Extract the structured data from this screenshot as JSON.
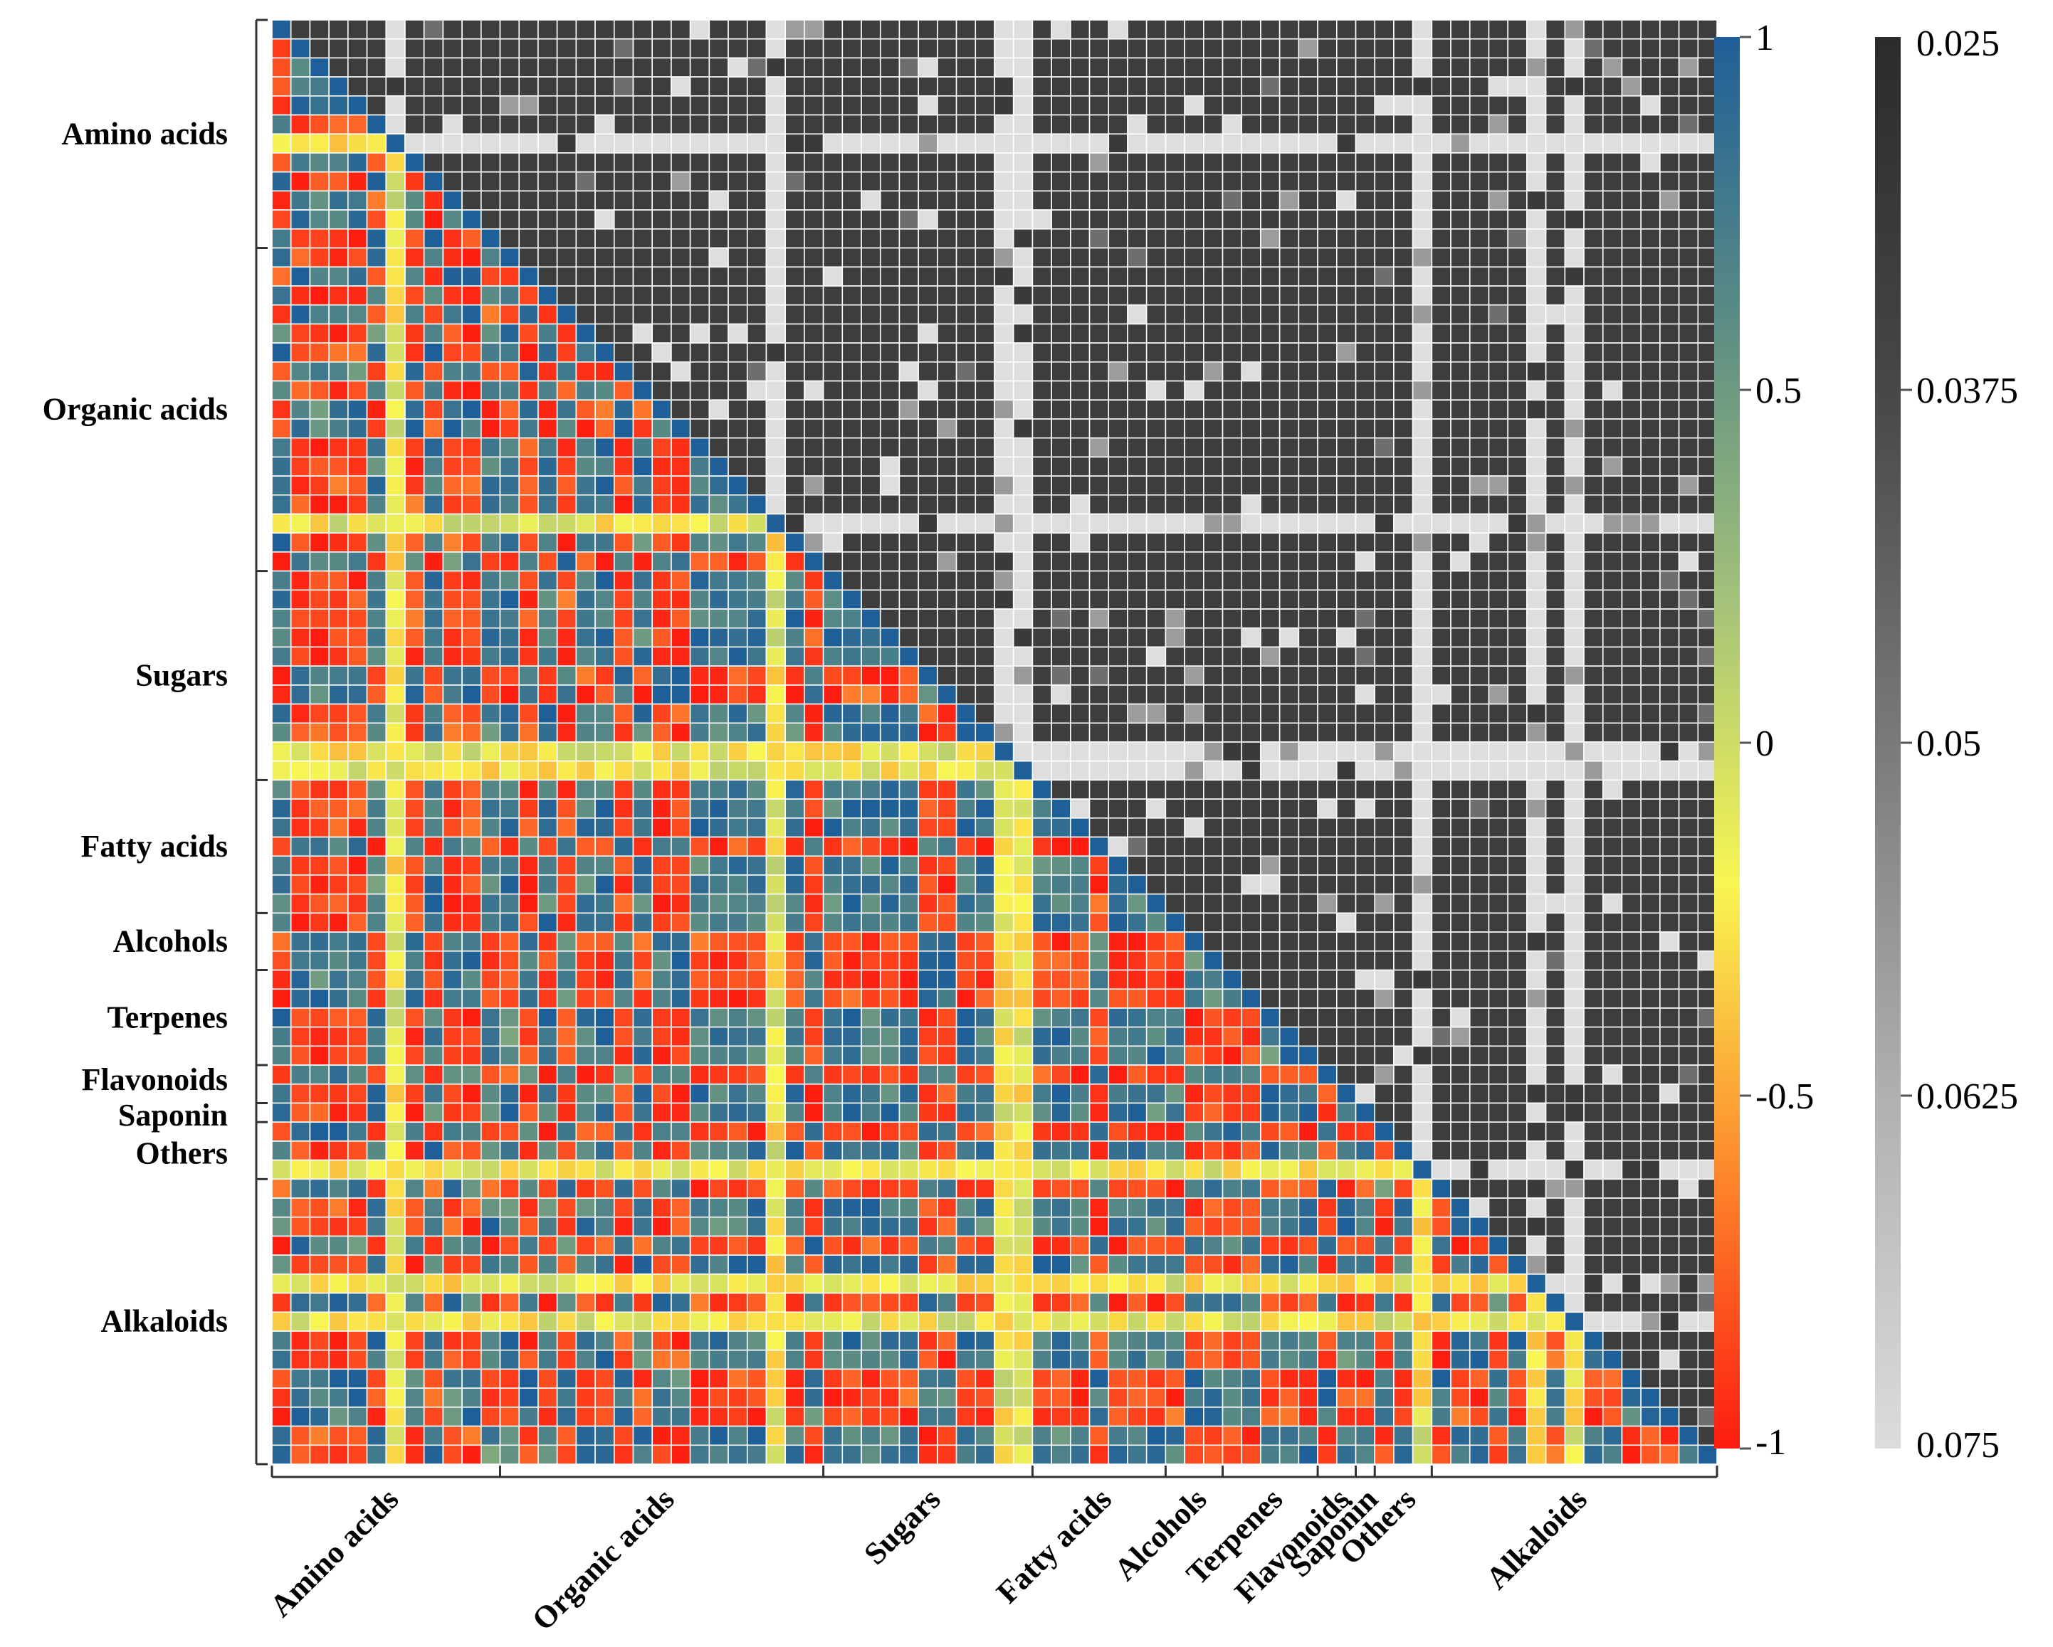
{
  "chart_data": {
    "type": "heatmap",
    "title": "",
    "description_of_layout": "lower triangle = correlation coefficient, upper triangle = p-value",
    "groups": [
      {
        "name": "Amino acids",
        "count": 12
      },
      {
        "name": "Organic acids",
        "count": 17
      },
      {
        "name": "Sugars",
        "count": 11
      },
      {
        "name": "Fatty acids",
        "count": 7
      },
      {
        "name": "Alcohols",
        "count": 3
      },
      {
        "name": "Terpenes",
        "count": 5
      },
      {
        "name": "Flavonoids",
        "count": 2
      },
      {
        "name": "Saponin",
        "count": 1
      },
      {
        "name": "Others",
        "count": 3
      },
      {
        "name": "Alkaloids",
        "count": 15
      }
    ],
    "special_rows": [
      {
        "row": 6,
        "note": "near-zero correlation row (amino acids)"
      },
      {
        "row": 26,
        "note": "near-zero correlation row (organic acids)"
      },
      {
        "row": 38,
        "note": "weak correlation row (sugars)"
      },
      {
        "row": 39,
        "note": "weak correlation row (sugars)"
      },
      {
        "row": 60,
        "note": "weak correlation row (others)"
      },
      {
        "row": 66,
        "note": "weak correlation row (alkaloids)"
      },
      {
        "row": 68,
        "note": "near-zero correlation row (alkaloids)"
      }
    ],
    "correlation_colorbar": {
      "ticks": [
        "1",
        "0.5",
        "0",
        "-0.5",
        "-1"
      ],
      "tick_values": [
        1,
        0.5,
        0,
        -0.5,
        -1
      ],
      "range": [
        -1,
        1
      ],
      "colors": [
        "#1f5f98",
        "#5b8c84",
        "#a4c27a",
        "#f8f652",
        "#fd8a2c",
        "#fd1c10"
      ]
    },
    "pvalue_colorbar": {
      "ticks": [
        "0.025",
        "0.0375",
        "0.05",
        "0.0625",
        "0.075"
      ],
      "tick_values": [
        0.025,
        0.0375,
        0.05,
        0.0625,
        0.075
      ],
      "range": [
        0.025,
        0.075
      ],
      "colors": [
        "#2b2b2b",
        "#474747",
        "#7a7a7a",
        "#b0b0b0",
        "#dcdcdc"
      ]
    }
  }
}
